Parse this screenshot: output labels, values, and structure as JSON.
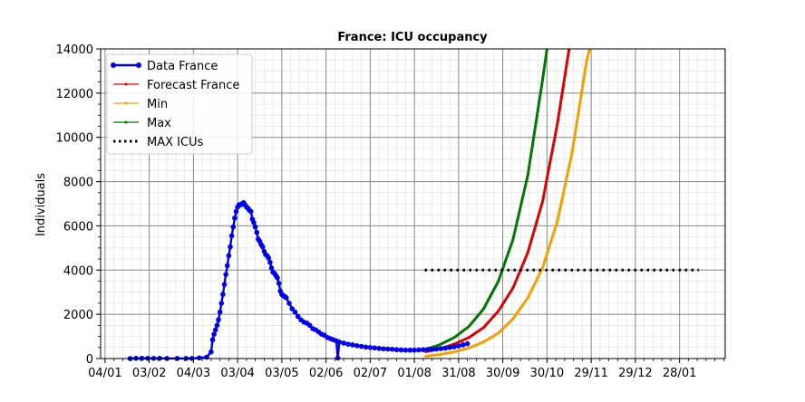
{
  "chart_data": {
    "type": "line",
    "title": "France: ICU occupancy",
    "xlabel": "",
    "ylabel": "Individuals",
    "x_type": "date",
    "xlim": [
      "2020-01-01",
      "2021-02-28"
    ],
    "ylim": [
      0,
      14000
    ],
    "y_ticks": [
      0,
      2000,
      4000,
      6000,
      8000,
      10000,
      12000,
      14000
    ],
    "x_ticks": [
      {
        "date": "2020-01-04",
        "label": "04/01"
      },
      {
        "date": "2020-02-03",
        "label": "03/02"
      },
      {
        "date": "2020-03-04",
        "label": "04/03"
      },
      {
        "date": "2020-04-03",
        "label": "03/04"
      },
      {
        "date": "2020-05-03",
        "label": "03/05"
      },
      {
        "date": "2020-06-02",
        "label": "02/06"
      },
      {
        "date": "2020-07-02",
        "label": "02/07"
      },
      {
        "date": "2020-08-01",
        "label": "01/08"
      },
      {
        "date": "2020-08-31",
        "label": "31/08"
      },
      {
        "date": "2020-09-30",
        "label": "30/09"
      },
      {
        "date": "2020-10-30",
        "label": "30/10"
      },
      {
        "date": "2020-11-29",
        "label": "29/11"
      },
      {
        "date": "2020-12-29",
        "label": "29/12"
      },
      {
        "date": "2021-01-28",
        "label": "28/01"
      }
    ],
    "grid": true,
    "legend_position": "upper-left",
    "series": [
      {
        "name": "Data France",
        "color": "#0000ee",
        "style": "line-dots",
        "points": [
          [
            "2020-01-21",
            0
          ],
          [
            "2020-01-25",
            10
          ],
          [
            "2020-01-29",
            10
          ],
          [
            "2020-02-02",
            10
          ],
          [
            "2020-02-06",
            10
          ],
          [
            "2020-02-10",
            10
          ],
          [
            "2020-02-15",
            5
          ],
          [
            "2020-02-22",
            5
          ],
          [
            "2020-02-28",
            5
          ],
          [
            "2020-03-03",
            5
          ],
          [
            "2020-03-08",
            30
          ],
          [
            "2020-03-13",
            60
          ],
          [
            "2020-03-16",
            300
          ],
          [
            "2020-03-17",
            850
          ],
          [
            "2020-03-18",
            1100
          ],
          [
            "2020-03-19",
            1300
          ],
          [
            "2020-03-20",
            1500
          ],
          [
            "2020-03-21",
            1750
          ],
          [
            "2020-03-22",
            2100
          ],
          [
            "2020-03-23",
            2500
          ],
          [
            "2020-03-24",
            2900
          ],
          [
            "2020-03-25",
            3350
          ],
          [
            "2020-03-26",
            3800
          ],
          [
            "2020-03-27",
            4200
          ],
          [
            "2020-03-28",
            4650
          ],
          [
            "2020-03-29",
            5050
          ],
          [
            "2020-03-30",
            5550
          ],
          [
            "2020-03-31",
            5950
          ],
          [
            "2020-04-01",
            6350
          ],
          [
            "2020-04-02",
            6650
          ],
          [
            "2020-04-03",
            6850
          ],
          [
            "2020-04-04",
            6950
          ],
          [
            "2020-04-05",
            6950
          ],
          [
            "2020-04-06",
            7000
          ],
          [
            "2020-04-07",
            7050
          ],
          [
            "2020-04-08",
            6950
          ],
          [
            "2020-04-09",
            6850
          ],
          [
            "2020-04-10",
            6800
          ],
          [
            "2020-04-11",
            6700
          ],
          [
            "2020-04-12",
            6650
          ],
          [
            "2020-04-13",
            6300
          ],
          [
            "2020-04-14",
            6150
          ],
          [
            "2020-04-15",
            5950
          ],
          [
            "2020-04-16",
            5700
          ],
          [
            "2020-04-17",
            5400
          ],
          [
            "2020-04-18",
            5300
          ],
          [
            "2020-04-19",
            5150
          ],
          [
            "2020-04-20",
            5050
          ],
          [
            "2020-04-21",
            4850
          ],
          [
            "2020-04-22",
            4700
          ],
          [
            "2020-04-23",
            4650
          ],
          [
            "2020-04-24",
            4550
          ],
          [
            "2020-04-25",
            4350
          ],
          [
            "2020-04-26",
            4100
          ],
          [
            "2020-04-27",
            3900
          ],
          [
            "2020-04-28",
            3850
          ],
          [
            "2020-04-29",
            3750
          ],
          [
            "2020-04-30",
            3650
          ],
          [
            "2020-05-01",
            3400
          ],
          [
            "2020-05-02",
            3050
          ],
          [
            "2020-05-03",
            2900
          ],
          [
            "2020-05-04",
            2850
          ],
          [
            "2020-05-05",
            2800
          ],
          [
            "2020-05-06",
            2750
          ],
          [
            "2020-05-08",
            2500
          ],
          [
            "2020-05-10",
            2250
          ],
          [
            "2020-05-12",
            2100
          ],
          [
            "2020-05-14",
            1900
          ],
          [
            "2020-05-16",
            1750
          ],
          [
            "2020-05-18",
            1650
          ],
          [
            "2020-05-20",
            1600
          ],
          [
            "2020-05-22",
            1500
          ],
          [
            "2020-05-24",
            1350
          ],
          [
            "2020-05-26",
            1300
          ],
          [
            "2020-05-28",
            1200
          ],
          [
            "2020-05-30",
            1100
          ],
          [
            "2020-06-01",
            1050
          ],
          [
            "2020-06-03",
            950
          ],
          [
            "2020-06-05",
            900
          ],
          [
            "2020-06-07",
            850
          ],
          [
            "2020-06-09",
            800
          ],
          [
            "2020-06-10",
            20
          ],
          [
            "2020-06-11",
            750
          ],
          [
            "2020-06-14",
            700
          ],
          [
            "2020-06-17",
            650
          ],
          [
            "2020-06-20",
            620
          ],
          [
            "2020-06-23",
            580
          ],
          [
            "2020-06-26",
            550
          ],
          [
            "2020-06-29",
            520
          ],
          [
            "2020-07-02",
            500
          ],
          [
            "2020-07-05",
            480
          ],
          [
            "2020-07-08",
            460
          ],
          [
            "2020-07-11",
            440
          ],
          [
            "2020-07-14",
            430
          ],
          [
            "2020-07-17",
            420
          ],
          [
            "2020-07-20",
            400
          ],
          [
            "2020-07-23",
            390
          ],
          [
            "2020-07-26",
            380
          ],
          [
            "2020-07-29",
            380
          ],
          [
            "2020-08-01",
            380
          ],
          [
            "2020-08-04",
            390
          ],
          [
            "2020-08-07",
            400
          ],
          [
            "2020-08-10",
            410
          ],
          [
            "2020-08-13",
            420
          ],
          [
            "2020-08-16",
            430
          ],
          [
            "2020-08-19",
            450
          ],
          [
            "2020-08-22",
            470
          ],
          [
            "2020-08-25",
            500
          ],
          [
            "2020-08-28",
            530
          ],
          [
            "2020-08-31",
            570
          ],
          [
            "2020-09-03",
            620
          ],
          [
            "2020-09-06",
            670
          ]
        ]
      },
      {
        "name": "Forecast France",
        "color": "#dd0000",
        "style": "line",
        "points": [
          [
            "2020-08-08",
            300
          ],
          [
            "2020-08-18",
            430
          ],
          [
            "2020-08-28",
            650
          ],
          [
            "2020-09-07",
            950
          ],
          [
            "2020-09-17",
            1400
          ],
          [
            "2020-09-27",
            2150
          ],
          [
            "2020-10-07",
            3200
          ],
          [
            "2020-10-17",
            4800
          ],
          [
            "2020-10-27",
            7100
          ],
          [
            "2020-11-06",
            10600
          ],
          [
            "2020-11-14",
            14000
          ]
        ]
      },
      {
        "name": "Min",
        "color": "#f5a000",
        "style": "line",
        "points": [
          [
            "2020-08-08",
            100
          ],
          [
            "2020-08-18",
            180
          ],
          [
            "2020-08-28",
            300
          ],
          [
            "2020-09-07",
            480
          ],
          [
            "2020-09-17",
            750
          ],
          [
            "2020-09-27",
            1150
          ],
          [
            "2020-10-07",
            1800
          ],
          [
            "2020-10-17",
            2750
          ],
          [
            "2020-10-27",
            4100
          ],
          [
            "2020-11-06",
            6200
          ],
          [
            "2020-11-16",
            9300
          ],
          [
            "2020-11-26",
            13500
          ],
          [
            "2020-11-28",
            14000
          ]
        ]
      },
      {
        "name": "Max",
        "color": "#007700",
        "style": "line",
        "points": [
          [
            "2020-08-08",
            400
          ],
          [
            "2020-08-18",
            620
          ],
          [
            "2020-08-28",
            950
          ],
          [
            "2020-09-07",
            1450
          ],
          [
            "2020-09-17",
            2250
          ],
          [
            "2020-09-27",
            3500
          ],
          [
            "2020-10-07",
            5400
          ],
          [
            "2020-10-17",
            8300
          ],
          [
            "2020-10-27",
            12600
          ],
          [
            "2020-10-30",
            14000
          ]
        ]
      },
      {
        "name": "MAX ICUs",
        "color": "#000000",
        "style": "dotted",
        "points": [
          [
            "2020-08-08",
            4000
          ],
          [
            "2021-02-10",
            4000
          ]
        ]
      }
    ]
  }
}
